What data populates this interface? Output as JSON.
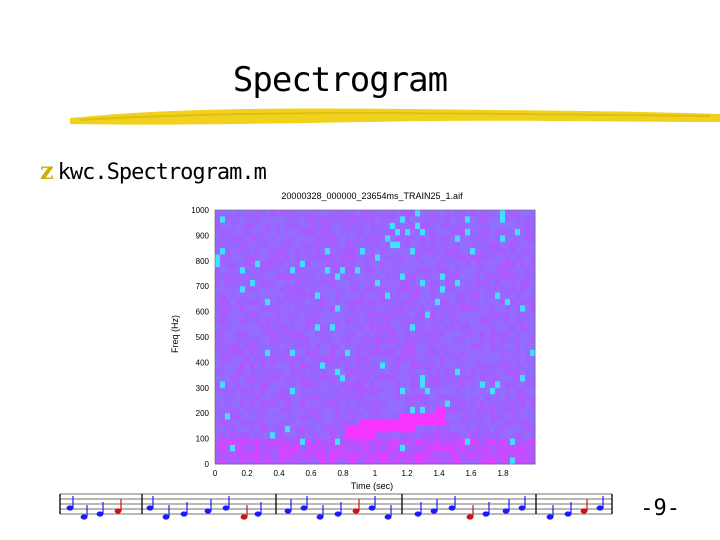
{
  "slide": {
    "title": "Spectrogram",
    "bullet_icon": "z",
    "bullet_text": "kwc.Spectrogram.m",
    "page_number": "-9-"
  },
  "colors": {
    "title_underline": "#f0d21e",
    "bullet": "#c8b400",
    "spectro_low": "#8080ff",
    "spectro_mid": "#a060ff",
    "spectro_high": "#ff30ff",
    "spectro_cyan": "#40e0ff",
    "note_blue": "#1a1aff",
    "note_red": "#d01010"
  },
  "chart_data": {
    "type": "heatmap",
    "title": "20000328_000000_23654ms_TRAIN25_1.aif",
    "xlabel": "Time (sec)",
    "ylabel": "Freq (Hz)",
    "xlim": [
      0,
      2.0
    ],
    "ylim": [
      0,
      1000
    ],
    "xticks": [
      0,
      0.2,
      0.4,
      0.6,
      0.8,
      1,
      1.2,
      1.4,
      1.6,
      1.8
    ],
    "yticks": [
      0,
      100,
      200,
      300,
      400,
      500,
      600,
      700,
      800,
      900,
      1000
    ],
    "features": [
      {
        "kind": "tonal-upsweep",
        "t_start": 0.8,
        "t_end": 1.45,
        "f_start": 120,
        "f_end": 190,
        "level": 0.95
      },
      {
        "kind": "low-frequency-band",
        "f_max": 100,
        "level": 0.75
      }
    ]
  }
}
